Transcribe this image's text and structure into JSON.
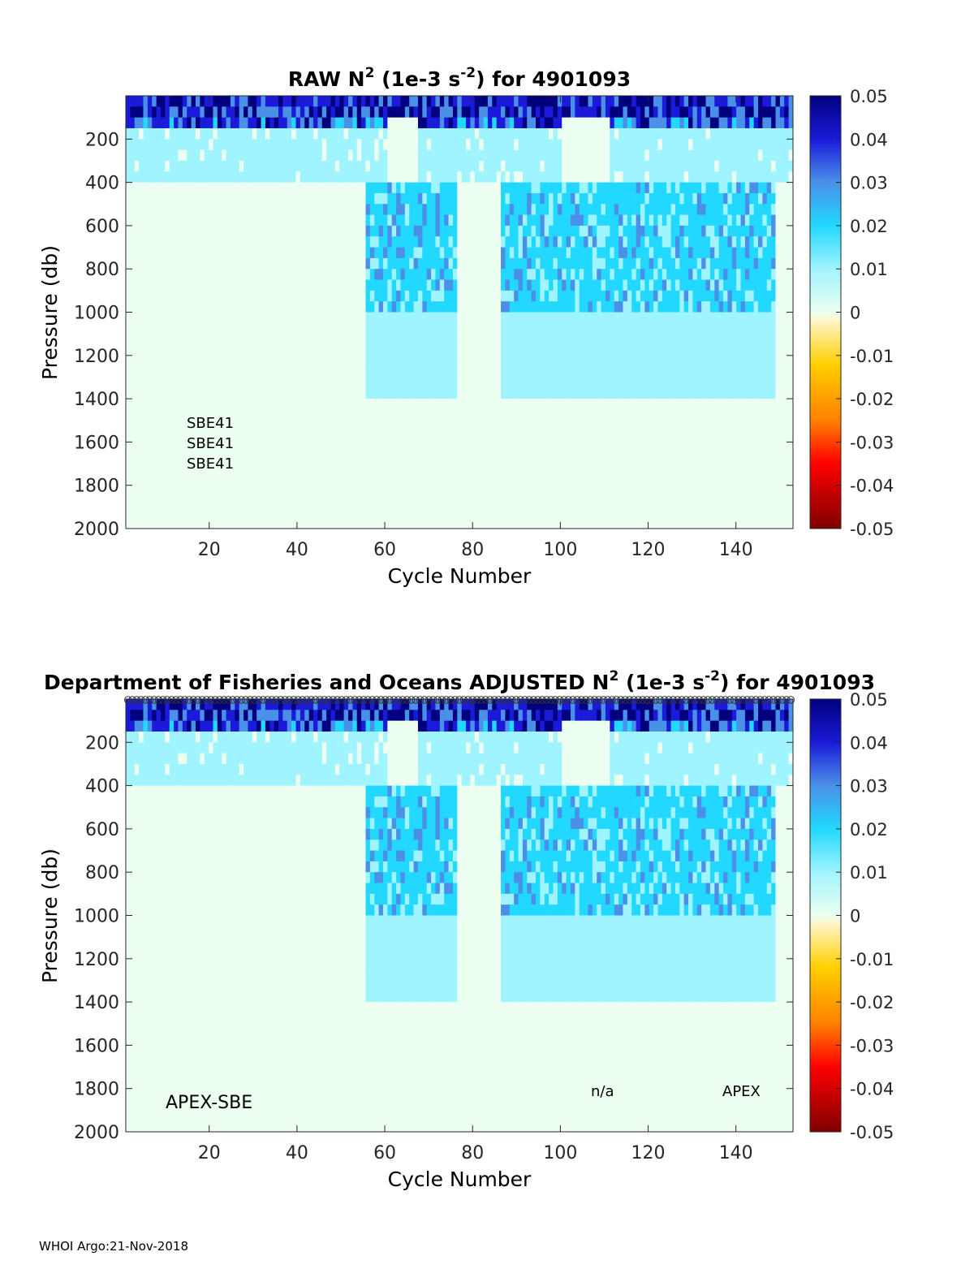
{
  "footer": "WHOI Argo:21-Nov-2018",
  "colors": {
    "colormap": [
      "#7f0000",
      "#ff0000",
      "#ff8000",
      "#ffd000",
      "#fff4c8",
      "#ecfff0",
      "#a0f4ff",
      "#22d8ff",
      "#4a90e8",
      "#1a1ad8",
      "#00007f"
    ]
  },
  "chart_data": [
    {
      "type": "heatmap",
      "title_prefix": "RAW N",
      "title_exp": "2",
      "title_mid": " (1e-3 s",
      "title_exp2": "-2",
      "title_suffix": ") for 4901093",
      "xlabel": "Cycle Number",
      "ylabel": "Pressure (db)",
      "xlim": [
        1,
        153
      ],
      "ylim": [
        0,
        2000
      ],
      "y_reversed": true,
      "xticks": [
        "20",
        "40",
        "60",
        "80",
        "100",
        "120",
        "140"
      ],
      "yticks": [
        "200",
        "400",
        "600",
        "800",
        "1000",
        "1200",
        "1400",
        "1600",
        "1800",
        "2000"
      ],
      "colorbar_ticks": [
        "0.05",
        "0.04",
        "0.03",
        "0.02",
        "0.01",
        "0",
        "-0.01",
        "-0.02",
        "-0.03",
        "-0.04",
        "-0.05"
      ],
      "clim": [
        -0.05,
        0.05
      ],
      "annotations": [
        "SBE41",
        "SBE41",
        "SBE41"
      ]
    },
    {
      "type": "heatmap",
      "title_prefix": "Department of Fisheries and Oceans  ADJUSTED N",
      "title_exp": "2",
      "title_mid": " (1e-3 s",
      "title_exp2": "-2",
      "title_suffix": ") for 4901093",
      "xlabel": "Cycle Number",
      "ylabel": "Pressure (db)",
      "xlim": [
        1,
        153
      ],
      "ylim": [
        0,
        2000
      ],
      "y_reversed": true,
      "xticks": [
        "20",
        "40",
        "60",
        "80",
        "100",
        "120",
        "140"
      ],
      "yticks": [
        "200",
        "400",
        "600",
        "800",
        "1000",
        "1200",
        "1400",
        "1600",
        "1800",
        "2000"
      ],
      "colorbar_ticks": [
        "0.05",
        "0.04",
        "0.03",
        "0.02",
        "0.01",
        "0",
        "-0.01",
        "-0.02",
        "-0.03",
        "-0.04",
        "-0.05"
      ],
      "clim": [
        -0.05,
        0.05
      ],
      "annotations": [
        "APEX-SBE",
        "n/a",
        "APEX"
      ],
      "qc_marker_row": true
    }
  ]
}
